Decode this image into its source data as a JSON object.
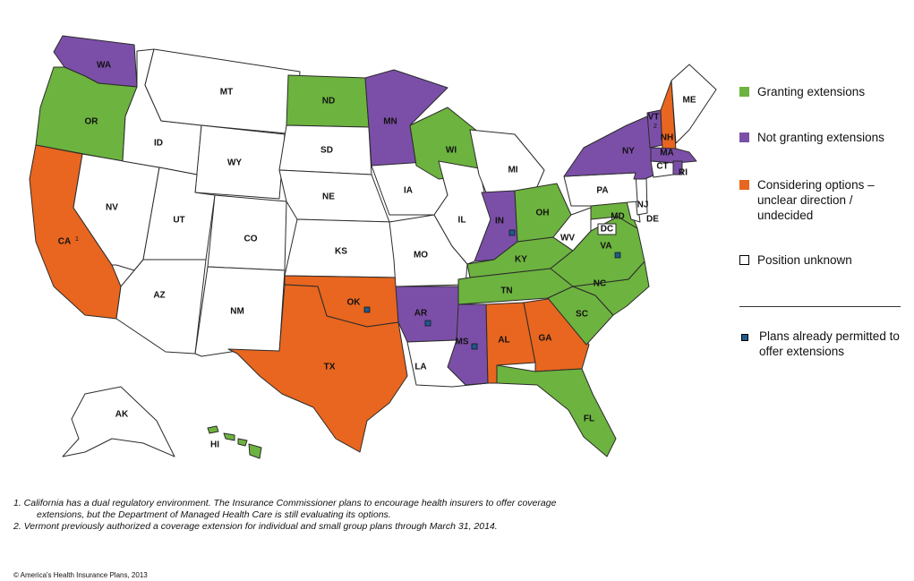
{
  "colors": {
    "granting": "#6db33f",
    "not_granting": "#7b4fa8",
    "considering": "#e8661f",
    "unknown": "#ffffff",
    "plan_marker": "#1f5a8a"
  },
  "legend": {
    "granting": "Granting extensions",
    "not_granting": "Not granting extensions",
    "considering_line1": "Considering options –",
    "considering_line2": "unclear direction /",
    "considering_line3": "undecided",
    "unknown": "Position unknown",
    "plans_line1": "Plans already permitted to",
    "plans_line2": "offer extensions"
  },
  "states": {
    "WA": "not_granting",
    "OR": "granting",
    "CA": "considering",
    "NV": "unknown",
    "ID": "unknown",
    "MT": "unknown",
    "WY": "unknown",
    "UT": "unknown",
    "AZ": "unknown",
    "CO": "unknown",
    "NM": "unknown",
    "ND": "granting",
    "SD": "unknown",
    "NE": "unknown",
    "KS": "unknown",
    "OK": "considering",
    "TX": "considering",
    "MN": "not_granting",
    "IA": "unknown",
    "MO": "unknown",
    "AR": "not_granting",
    "LA": "unknown",
    "WI": "granting",
    "IL": "unknown",
    "MI": "unknown",
    "IN": "not_granting",
    "OH": "granting",
    "KY": "granting",
    "TN": "granting",
    "MS": "not_granting",
    "AL": "considering",
    "GA": "considering",
    "FL": "granting",
    "SC": "granting",
    "NC": "granting",
    "VA": "granting",
    "WV": "unknown",
    "MD": "granting",
    "DE": "unknown",
    "NJ": "unknown",
    "PA": "unknown",
    "NY": "not_granting",
    "VT": "not_granting",
    "NH": "considering",
    "ME": "unknown",
    "MA": "not_granting",
    "CT": "unknown",
    "RI": "not_granting",
    "DC": "unknown",
    "AK": "unknown",
    "HI": "granting"
  },
  "labels": {
    "WA": "WA",
    "OR": "OR",
    "CA": "CA",
    "NV": "NV",
    "ID": "ID",
    "MT": "MT",
    "WY": "WY",
    "UT": "UT",
    "AZ": "AZ",
    "CO": "CO",
    "NM": "NM",
    "ND": "ND",
    "SD": "SD",
    "NE": "NE",
    "KS": "KS",
    "OK": "OK",
    "TX": "TX",
    "MN": "MN",
    "IA": "IA",
    "MO": "MO",
    "AR": "AR",
    "LA": "LA",
    "WI": "WI",
    "IL": "IL",
    "MI": "MI",
    "IN": "IN",
    "OH": "OH",
    "KY": "KY",
    "TN": "TN",
    "MS": "MS",
    "AL": "AL",
    "GA": "GA",
    "FL": "FL",
    "SC": "SC",
    "NC": "NC",
    "VA": "VA",
    "WV": "WV",
    "MD": "MD",
    "DE": "DE",
    "NJ": "NJ",
    "PA": "PA",
    "NY": "NY",
    "VT": "VT",
    "NH": "NH",
    "ME": "ME",
    "MA": "MA",
    "CT": "CT",
    "RI": "RI",
    "DC": "DC",
    "AK": "AK",
    "HI": "HI"
  },
  "superscripts": {
    "CA": "1",
    "VT": "2"
  },
  "plans_permitted": [
    "IN",
    "VA",
    "OK",
    "AR",
    "MS"
  ],
  "footnotes": {
    "note1_line1": "1. California  has  a  dual  regulatory  environment.   The  Insurance  Commissioner  plans  to  encourage  health  insurers  to  offer  coverage",
    "note1_line2": "extensions,  but  the  Department  of  Managed  Health  Care  is  still  evaluating  its  options.",
    "note2": "2. Vermont  previously  authorized   a  coverage  extension  for  individual   and  small  group  plans  through  March  31,  2014."
  },
  "copyright": "© America's Health Insurance Plans, 2013"
}
